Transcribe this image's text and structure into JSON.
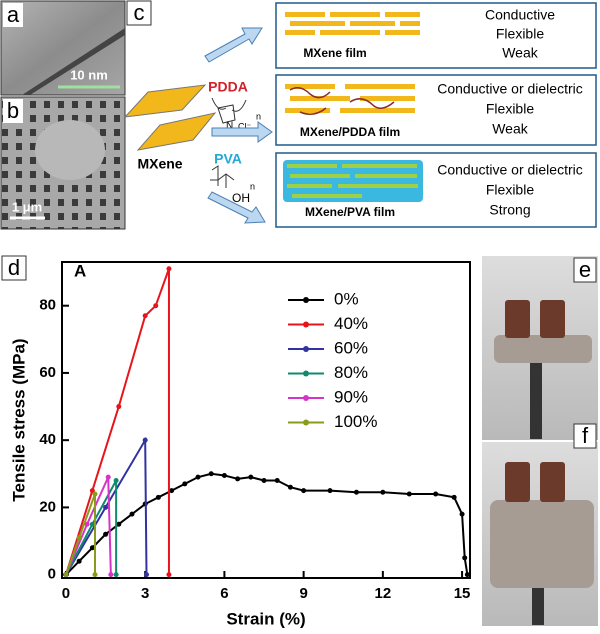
{
  "panels": {
    "a": {
      "label": "a",
      "scale_bar": "10 nm"
    },
    "b": {
      "label": "b",
      "scale_bar": "1 μm"
    },
    "c": {
      "label": "c",
      "mxene": "MXene",
      "pdda": "PDDA",
      "pdda_n": "n",
      "nitrogen": "N",
      "chloride": "Cl⁻",
      "pva": "PVA",
      "pva_n": "n",
      "hydroxyl": "OH",
      "rows": [
        {
          "film": "MXene film",
          "properties": [
            "Conductive",
            "Flexible",
            "Weak"
          ]
        },
        {
          "film": "MXene/PDDA film",
          "properties": [
            "Conductive or dielectric",
            "Flexible",
            "Weak"
          ]
        },
        {
          "film": "MXene/PVA film",
          "properties": [
            "Conductive or dielectric",
            "Flexible",
            "Strong"
          ]
        }
      ]
    },
    "d": {
      "label": "d"
    },
    "e": {
      "label": "e"
    },
    "f": {
      "label": "f"
    }
  },
  "chart_data": {
    "type": "line",
    "annotation": "A",
    "x_label": "Strain (%)",
    "y_label": "Tensile stress (MPa)",
    "xlim": [
      -0.15,
      15.3
    ],
    "ylim": [
      -1,
      93
    ],
    "xticks": [
      0,
      3,
      6,
      9,
      12,
      15
    ],
    "yticks": [
      0,
      20,
      40,
      60,
      80
    ],
    "legend": "upper center",
    "series": [
      {
        "name": "0%",
        "color": "#000000",
        "x": [
          0,
          0.5,
          1,
          1.5,
          2,
          2.5,
          3,
          3.5,
          4,
          4.5,
          5,
          5.5,
          6,
          6.5,
          7,
          7.5,
          8,
          8.5,
          9,
          10,
          11,
          12,
          13,
          14,
          14.7,
          15,
          15.1,
          15.2
        ],
        "values": [
          0,
          4,
          8,
          12,
          15,
          18,
          21,
          23,
          25,
          27,
          29,
          30,
          29.5,
          28.5,
          29,
          28,
          28,
          26,
          25,
          25,
          24.5,
          24.5,
          24,
          24,
          23,
          18,
          5,
          0
        ]
      },
      {
        "name": "40%",
        "color": "#e8141c",
        "x": [
          0,
          1,
          2,
          3,
          3.4,
          3.9,
          3.9
        ],
        "values": [
          0,
          25,
          50,
          77,
          80,
          91,
          0
        ]
      },
      {
        "name": "60%",
        "color": "#3232a0",
        "x": [
          0,
          1.5,
          3,
          3.05
        ],
        "values": [
          0,
          20,
          40,
          0
        ]
      },
      {
        "name": "80%",
        "color": "#0f8a6e",
        "x": [
          0,
          1,
          1.9,
          1.9
        ],
        "values": [
          0,
          15,
          28,
          0
        ]
      },
      {
        "name": "90%",
        "color": "#d633c8",
        "x": [
          0,
          0.8,
          1.6,
          1.7
        ],
        "values": [
          0,
          15,
          29,
          0
        ]
      },
      {
        "name": "100%",
        "color": "#8a9a1a",
        "x": [
          0,
          0.5,
          1.1,
          1.1
        ],
        "values": [
          0,
          11,
          24,
          0
        ]
      }
    ]
  }
}
